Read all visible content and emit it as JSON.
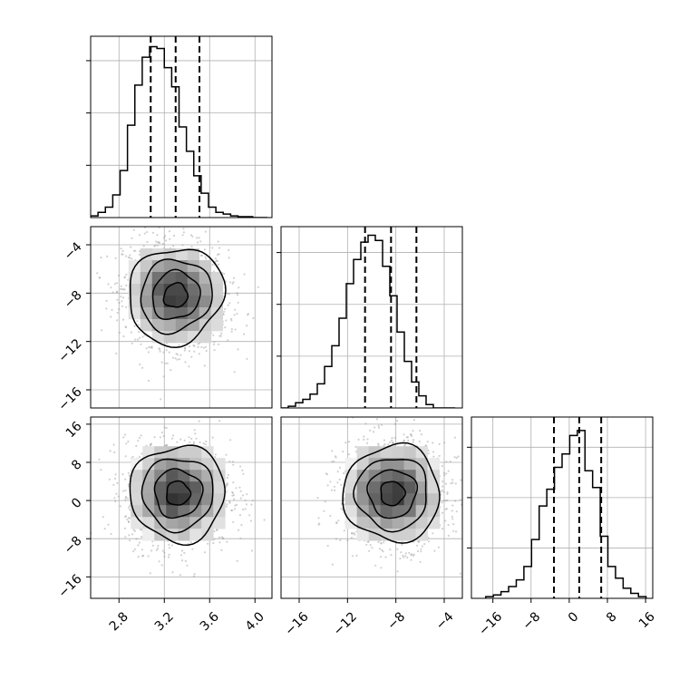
{
  "chart_data": {
    "type": "corner",
    "parameters": [
      {
        "xlim": [
          2.55,
          4.15
        ],
        "ticks": [
          2.8,
          3.2,
          3.6,
          4.0
        ],
        "tick_labels": [
          "2.8",
          "3.2",
          "3.6",
          "4.0"
        ]
      },
      {
        "xlim": [
          -17.5,
          -2.5
        ],
        "ticks": [
          -16,
          -12,
          -8,
          -4
        ],
        "tick_labels": [
          "−16",
          "−12",
          "−8",
          "−4"
        ]
      },
      {
        "xlim": [
          -20.5,
          17.5
        ],
        "ticks": [
          -16,
          -8,
          0,
          8,
          16
        ],
        "tick_labels": [
          "−16",
          "−8",
          "0",
          "8",
          "16"
        ]
      }
    ],
    "histograms": [
      {
        "param": 0,
        "edges": [
          2.55,
          2.615,
          2.68,
          2.745,
          2.81,
          2.875,
          2.94,
          3.005,
          3.07,
          3.135,
          3.2,
          3.265,
          3.33,
          3.395,
          3.46,
          3.525,
          3.59,
          3.655,
          3.72,
          3.785,
          3.85,
          3.915,
          3.98,
          4.045,
          4.11
        ],
        "counts": [
          0.01,
          0.03,
          0.06,
          0.13,
          0.27,
          0.53,
          0.76,
          0.92,
          0.98,
          0.97,
          0.86,
          0.75,
          0.52,
          0.38,
          0.24,
          0.14,
          0.06,
          0.03,
          0.02,
          0.01,
          0.005,
          0.005,
          0.0,
          0.0
        ],
        "ylim": [
          0,
          1.04
        ],
        "quantiles": [
          3.08,
          3.3,
          3.51
        ]
      },
      {
        "param": 1,
        "edges": [
          -17.5,
          -16.9,
          -16.3,
          -15.7,
          -15.1,
          -14.5,
          -13.9,
          -13.3,
          -12.7,
          -12.1,
          -11.5,
          -10.9,
          -10.3,
          -9.7,
          -9.1,
          -8.5,
          -7.9,
          -7.3,
          -6.7,
          -6.1,
          -5.5,
          -4.9,
          -4.3,
          -3.7,
          -3.1
        ],
        "counts": [
          0.0,
          0.01,
          0.03,
          0.05,
          0.08,
          0.14,
          0.24,
          0.36,
          0.52,
          0.72,
          0.86,
          0.96,
          1.0,
          0.97,
          0.82,
          0.65,
          0.44,
          0.27,
          0.15,
          0.07,
          0.02,
          0.0,
          0.0,
          0.0
        ],
        "ylim": [
          0,
          1.05
        ],
        "quantiles": [
          -10.55,
          -8.4,
          -6.3
        ]
      },
      {
        "param": 2,
        "edges": [
          -17.5,
          -15.9,
          -14.3,
          -12.7,
          -11.1,
          -9.5,
          -7.9,
          -6.3,
          -4.7,
          -3.1,
          -1.5,
          0.1,
          1.7,
          3.3,
          4.9,
          6.5,
          8.1,
          9.7,
          11.3,
          12.9,
          14.5,
          16.1
        ],
        "counts": [
          0.01,
          0.02,
          0.04,
          0.07,
          0.11,
          0.19,
          0.35,
          0.55,
          0.65,
          0.78,
          0.86,
          0.97,
          1.0,
          0.76,
          0.66,
          0.37,
          0.19,
          0.12,
          0.06,
          0.03,
          0.01
        ],
        "ylim": [
          0,
          1.08
        ],
        "quantiles": [
          -3.2,
          2.1,
          6.7
        ]
      }
    ],
    "scatter_pairs": [
      {
        "x_param": 0,
        "y_param": 1,
        "center": [
          3.3,
          -8.2
        ],
        "spread": [
          0.22,
          2.1
        ],
        "correlation": -0.15
      },
      {
        "x_param": 0,
        "y_param": 2,
        "center": [
          3.32,
          1.5
        ],
        "spread": [
          0.22,
          5.3
        ],
        "correlation": 0.0
      },
      {
        "x_param": 1,
        "y_param": 2,
        "center": [
          -8.3,
          1.5
        ],
        "spread": [
          2.1,
          5.3
        ],
        "correlation": 0.0
      }
    ],
    "contour_levels_sigma": [
      0.5,
      1.0,
      1.5,
      2.0
    ],
    "grid": true,
    "colors": {
      "line": "#000000",
      "grid": "#b0b0b0",
      "points": "#9a9a9a",
      "background": "#ffffff"
    }
  }
}
